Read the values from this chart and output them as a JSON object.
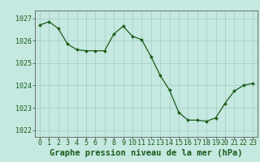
{
  "x": [
    0,
    1,
    2,
    3,
    4,
    5,
    6,
    7,
    8,
    9,
    10,
    11,
    12,
    13,
    14,
    15,
    16,
    17,
    18,
    19,
    20,
    21,
    22,
    23
  ],
  "y": [
    1026.7,
    1026.85,
    1026.55,
    1025.85,
    1025.6,
    1025.55,
    1025.55,
    1025.55,
    1026.3,
    1026.65,
    1026.2,
    1026.05,
    1025.3,
    1024.45,
    1023.8,
    1022.8,
    1022.45,
    1022.45,
    1022.4,
    1022.55,
    1023.2,
    1023.75,
    1024.0,
    1024.1
  ],
  "line_color": "#1a5c1a",
  "marker_color": "#1a5c1a",
  "bg_color": "#c5e8e0",
  "grid_color_major": "#a8cfc8",
  "grid_color_minor": "#b8ddd8",
  "xlabel": "Graphe pression niveau de la mer (hPa)",
  "xlabel_fontsize": 7.5,
  "ylabel_ticks": [
    1022,
    1023,
    1024,
    1025,
    1026,
    1027
  ],
  "ylim": [
    1021.7,
    1027.35
  ],
  "xlim": [
    -0.5,
    23.5
  ],
  "xticks": [
    0,
    1,
    2,
    3,
    4,
    5,
    6,
    7,
    8,
    9,
    10,
    11,
    12,
    13,
    14,
    15,
    16,
    17,
    18,
    19,
    20,
    21,
    22,
    23
  ],
  "tick_fontsize": 6.0,
  "axis_color": "#444444",
  "text_color": "#1a5c1a"
}
